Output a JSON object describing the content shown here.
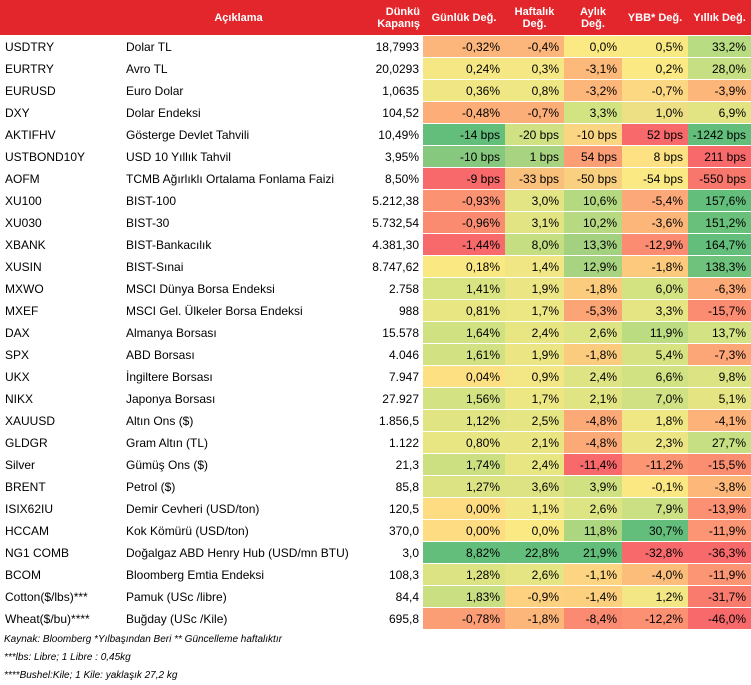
{
  "headers": {
    "aciklama": "Açıklama",
    "kapanis": "Dünkü Kapanış",
    "gunluk": "Günlük Değ.",
    "haftalik": "Haftalık Değ.",
    "aylik": "Aylık Değ.",
    "ybb": "YBB* Değ.",
    "yillik": "Yıllık Değ."
  },
  "rows": [
    {
      "code": "USDTRY",
      "desc": "Dolar TL",
      "close": "18,7993",
      "d": "-0,32%",
      "w": "-0,4%",
      "m": "0,0%",
      "y": "0,5%",
      "a": "33,2%",
      "cd": "#fcb57a",
      "cw": "#fcb57a",
      "cm": "#fbe983",
      "cy": "#f8e983",
      "ca": "#b8dc81"
    },
    {
      "code": "EURTRY",
      "desc": "Avro TL",
      "close": "20,0293",
      "d": "0,24%",
      "w": "0,3%",
      "m": "-3,1%",
      "y": "0,2%",
      "a": "28,0%",
      "cd": "#f5e884",
      "cw": "#f5e884",
      "cm": "#fcb97a",
      "cy": "#fbe983",
      "ca": "#c5df82"
    },
    {
      "code": "EURUSD",
      "desc": "Euro Dolar",
      "close": "1,0635",
      "d": "0,36%",
      "w": "0,8%",
      "m": "-3,2%",
      "y": "-0,7%",
      "a": "-3,9%",
      "cd": "#f0e784",
      "cw": "#eee784",
      "cm": "#fcb67a",
      "cy": "#fdd882",
      "ca": "#fcb67a"
    },
    {
      "code": "DXY",
      "desc": "Dolar Endeksi",
      "close": "104,52",
      "d": "-0,48%",
      "w": "-0,7%",
      "m": "3,3%",
      "y": "1,0%",
      "a": "6,9%",
      "cd": "#fcad78",
      "cw": "#fcae78",
      "cm": "#d2e382",
      "cy": "#ecdf84",
      "ca": "#e2e383"
    },
    {
      "code": "AKTIFHV",
      "desc": "Gösterge Devlet Tahvili",
      "close": "10,49%",
      "d": "-14 bps",
      "w": "-20 bps",
      "m": "-10 bps",
      "y": "52 bps",
      "a": "-1242 bps",
      "cd": "#63be7b",
      "cw": "#cfe182",
      "cm": "#fbd682",
      "cy": "#f8696b",
      "ca": "#63be7b"
    },
    {
      "code": "USTBOND10Y",
      "desc": "USD 10 Yıllık Tahvil",
      "close": "3,95%",
      "d": "-10 bps",
      "w": "1 bps",
      "m": "54 bps",
      "y": "8 bps",
      "a": "211 bps",
      "cd": "#86c97e",
      "cw": "#a8d380",
      "cm": "#fb9d75",
      "cy": "#fde182",
      "ca": "#f8696b"
    },
    {
      "code": "AOFM",
      "desc": "TCMB Ağırlıklı Ortalama Fonlama Faizi",
      "close": "8,50%",
      "d": "-9 bps",
      "w": "-33 bps",
      "m": "-50 bps",
      "y": "-54 bps",
      "a": "-550 bps",
      "cd": "#f8696b",
      "cw": "#f9c07b",
      "cm": "#f9d07f",
      "cy": "#fbe983",
      "ca": "#f8776d"
    },
    {
      "code": "XU100",
      "desc": "BIST-100",
      "close": "5.212,38",
      "d": "-0,93%",
      "w": "3,0%",
      "m": "10,6%",
      "y": "-5,4%",
      "a": "157,6%",
      "cd": "#fb9373",
      "cw": "#e3e483",
      "cm": "#b4d981",
      "cy": "#fca878",
      "ca": "#63be7b"
    },
    {
      "code": "XU030",
      "desc": "BIST-30",
      "close": "5.732,54",
      "d": "-0,96%",
      "w": "3,1%",
      "m": "10,2%",
      "y": "-3,6%",
      "a": "151,2%",
      "cd": "#fa8b71",
      "cw": "#e2e383",
      "cm": "#b6d981",
      "cy": "#fcb679",
      "ca": "#68c07b"
    },
    {
      "code": "XBANK",
      "desc": "BIST-Bankacılık",
      "close": "4.381,30",
      "d": "-1,44%",
      "w": "8,0%",
      "m": "13,3%",
      "y": "-12,9%",
      "a": "164,7%",
      "cd": "#f8696b",
      "cw": "#c4de81",
      "cm": "#a3d180",
      "cy": "#fb8c71",
      "ca": "#63be7b"
    },
    {
      "code": "XUSIN",
      "desc": "BIST-Sınai",
      "close": "8.747,62",
      "d": "0,18%",
      "w": "1,4%",
      "m": "12,9%",
      "y": "-1,8%",
      "a": "138,3%",
      "cd": "#fae983",
      "cw": "#f0e784",
      "cm": "#a8d380",
      "cy": "#fdc97d",
      "ca": "#6ec27c"
    },
    {
      "code": "MXWO",
      "desc": "MSCI Dünya Borsa Endeksi",
      "close": "2.758",
      "d": "1,41%",
      "w": "1,9%",
      "m": "-1,8%",
      "y": "6,0%",
      "a": "-6,3%",
      "cd": "#d8e382",
      "cw": "#ebe683",
      "cm": "#fccc7e",
      "cy": "#d4e382",
      "ca": "#fcaa77"
    },
    {
      "code": "MXEF",
      "desc": "MSCI Gel. Ülkeler Borsa Endeksi",
      "close": "988",
      "d": "0,81%",
      "w": "1,7%",
      "m": "-5,3%",
      "y": "3,3%",
      "a": "-15,7%",
      "cd": "#e8e583",
      "cw": "#ece683",
      "cm": "#fba476",
      "cy": "#e6e583",
      "ca": "#fb8c71"
    },
    {
      "code": "DAX",
      "desc": "Almanya Borsası",
      "close": "15.578",
      "d": "1,64%",
      "w": "2,4%",
      "m": "2,6%",
      "y": "11,9%",
      "a": "13,7%",
      "cd": "#d0e182",
      "cw": "#e8e583",
      "cm": "#dce483",
      "cy": "#bbdc81",
      "ca": "#d3e282"
    },
    {
      "code": "SPX",
      "desc": "ABD Borsası",
      "close": "4.046",
      "d": "1,61%",
      "w": "1,9%",
      "m": "-1,8%",
      "y": "5,4%",
      "a": "-7,3%",
      "cd": "#d2e282",
      "cw": "#ebe683",
      "cm": "#fccc7e",
      "cy": "#d7e382",
      "ca": "#fca577"
    },
    {
      "code": "UKX",
      "desc": "İngiltere Borsası",
      "close": "7.947",
      "d": "0,04%",
      "w": "0,9%",
      "m": "2,4%",
      "y": "6,6%",
      "a": "9,8%",
      "cd": "#fde082",
      "cw": "#f2e784",
      "cm": "#dee483",
      "cy": "#d1e282",
      "ca": "#dbe383"
    },
    {
      "code": "NIKX",
      "desc": "Japonya Borsası",
      "close": "27.927",
      "d": "1,56%",
      "w": "1,7%",
      "m": "2,1%",
      "y": "7,0%",
      "a": "5,1%",
      "cd": "#d3e282",
      "cw": "#ece683",
      "cm": "#e1e483",
      "cy": "#cfe182",
      "ca": "#e4e483"
    },
    {
      "code": "XAUUSD",
      "desc": "Altın Ons ($)",
      "close": "1.856,5",
      "d": "1,12%",
      "w": "2,5%",
      "m": "-4,8%",
      "y": "1,8%",
      "a": "-4,1%",
      "cd": "#e0e483",
      "cw": "#e6e583",
      "cm": "#fbaa77",
      "cy": "#eee784",
      "ca": "#fcb278"
    },
    {
      "code": "GLDGR",
      "desc": "Gram Altın (TL)",
      "close": "1.122",
      "d": "0,80%",
      "w": "2,1%",
      "m": "-4,8%",
      "y": "2,3%",
      "a": "27,7%",
      "cd": "#e8e583",
      "cw": "#eae583",
      "cm": "#fbaa77",
      "cy": "#ebe683",
      "ca": "#c6df82"
    },
    {
      "code": "Silver",
      "desc": "Gümüş Ons ($)",
      "close": "21,3",
      "d": "1,74%",
      "w": "2,4%",
      "m": "-11,4%",
      "y": "-11,2%",
      "a": "-15,5%",
      "cd": "#cce082",
      "cw": "#e8e583",
      "cm": "#f8696b",
      "cy": "#fb9573",
      "ca": "#fb8d71"
    },
    {
      "code": "BRENT",
      "desc": "Petrol ($)",
      "close": "85,8",
      "d": "1,27%",
      "w": "3,6%",
      "m": "3,9%",
      "y": "-0,1%",
      "a": "-3,8%",
      "cd": "#dbe383",
      "cw": "#dde383",
      "cm": "#d0e182",
      "cy": "#fce883",
      "ca": "#fcb779"
    },
    {
      "code": "ISIX62IU",
      "desc": "Demir Cevheri (USD/ton)",
      "close": "120,5",
      "d": "0,00%",
      "w": "1,1%",
      "m": "2,6%",
      "y": "7,9%",
      "a": "-13,9%",
      "cd": "#fedc81",
      "cw": "#f1e784",
      "cm": "#dce483",
      "cy": "#cbe082",
      "ca": "#fb9072"
    },
    {
      "code": "HCCAM",
      "desc": "Kok Kömürü (USD/ton)",
      "close": "370,0",
      "d": "0,00%",
      "w": "0,0%",
      "m": "11,8%",
      "y": "30,7%",
      "a": "-11,9%",
      "cd": "#fedc81",
      "cw": "#fbe983",
      "cm": "#add680",
      "cy": "#63be7b",
      "ca": "#fb9573"
    },
    {
      "code": "NG1 COMB",
      "desc": "Doğalgaz ABD Henry Hub (USD/mn BTU)",
      "close": "3,0",
      "d": "8,82%",
      "w": "22,8%",
      "m": "21,9%",
      "y": "-32,8%",
      "a": "-36,3%",
      "cd": "#63be7b",
      "cw": "#63be7b",
      "cm": "#63be7b",
      "cy": "#f8696b",
      "ca": "#f8696b"
    },
    {
      "code": "BCOM",
      "desc": "Bloomberg Emtia Endeksi",
      "close": "108,3",
      "d": "1,28%",
      "w": "2,6%",
      "m": "-1,1%",
      "y": "-4,0%",
      "a": "-11,9%",
      "cd": "#dbe383",
      "cw": "#e5e583",
      "cm": "#fdd481",
      "cy": "#fcbd7b",
      "ca": "#fb9573"
    },
    {
      "code": "Cotton($/lbs)***",
      "desc": "Pamuk (USc /libre)",
      "close": "84,4",
      "d": "1,83%",
      "w": "-0,9%",
      "m": "-1,4%",
      "y": "1,2%",
      "a": "-31,7%",
      "cd": "#c9df82",
      "cw": "#fdd180",
      "cm": "#fcd07f",
      "cy": "#f2e784",
      "ca": "#f87b6d"
    },
    {
      "code": "Wheat($/bu)****",
      "desc": "Buğday (USc /Kile)",
      "close": "695,8",
      "d": "-0,78%",
      "w": "-1,8%",
      "m": "-8,4%",
      "y": "-12,2%",
      "a": "-46,0%",
      "cd": "#fb9e75",
      "cw": "#fcb679",
      "cm": "#fa8a71",
      "cy": "#fb9072",
      "ca": "#f8696b"
    }
  ],
  "notes": {
    "line1": "Kaynak: Bloomberg *Yılbaşından Beri  ** Güncelleme haftalıktır",
    "line2": "***lbs: Libre; 1 Libre : 0,45kg",
    "line3": "****Bushel:Kile; 1 Kile: yaklaşık 27,2 kg"
  }
}
